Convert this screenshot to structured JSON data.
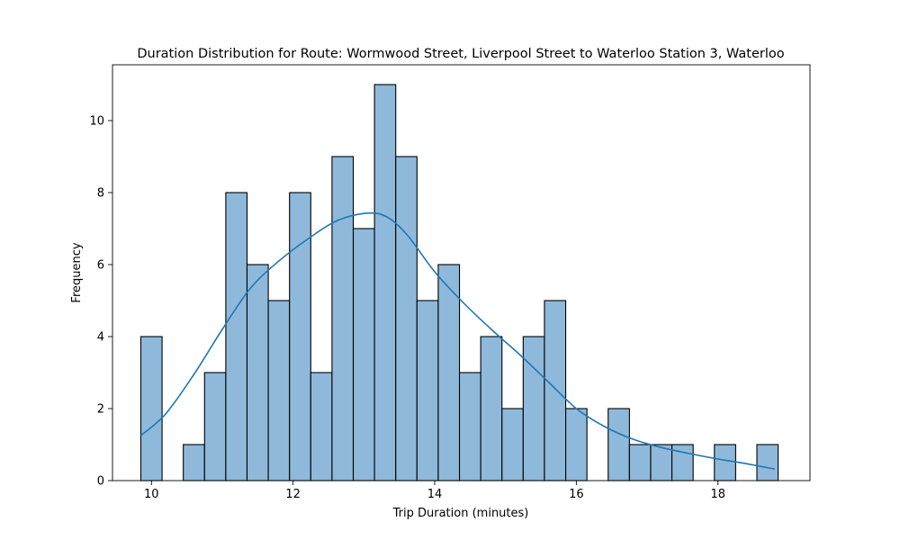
{
  "chart_data": {
    "type": "bar",
    "title": "Duration Distribution for Route: Wormwood Street, Liverpool Street to Waterloo Station 3, Waterloo",
    "xlabel": "Trip Duration (minutes)",
    "ylabel": "Frequency",
    "xlim": [
      9.45,
      19.3
    ],
    "ylim": [
      0,
      11.55
    ],
    "xticks": [
      10,
      12,
      14,
      16,
      18
    ],
    "yticks": [
      0,
      2,
      4,
      6,
      8,
      10
    ],
    "grid": false,
    "bins": {
      "start": 9.85,
      "width": 0.3,
      "counts": [
        4,
        0,
        1,
        3,
        8,
        6,
        5,
        8,
        3,
        9,
        7,
        11,
        9,
        5,
        6,
        3,
        4,
        2,
        4,
        5,
        2,
        0,
        2,
        1,
        1,
        1,
        0,
        1,
        0,
        1
      ]
    },
    "kde_series": {
      "color": "#1f77b4",
      "x": [
        9.85,
        10.2,
        10.6,
        11.0,
        11.4,
        11.8,
        12.2,
        12.6,
        13.0,
        13.3,
        13.6,
        14.0,
        14.4,
        14.8,
        15.2,
        15.6,
        16.0,
        16.4,
        16.8,
        17.2,
        17.6,
        18.0,
        18.4,
        18.8
      ],
      "y": [
        1.25,
        1.85,
        2.95,
        4.2,
        5.35,
        6.1,
        6.7,
        7.2,
        7.42,
        7.35,
        6.85,
        5.8,
        4.95,
        4.2,
        3.5,
        2.75,
        2.0,
        1.5,
        1.15,
        0.92,
        0.75,
        0.6,
        0.47,
        0.32
      ]
    },
    "colors": {
      "bar_fill": "#8fb9db",
      "bar_edge": "#000000",
      "kde_line": "#1f77b4"
    }
  }
}
